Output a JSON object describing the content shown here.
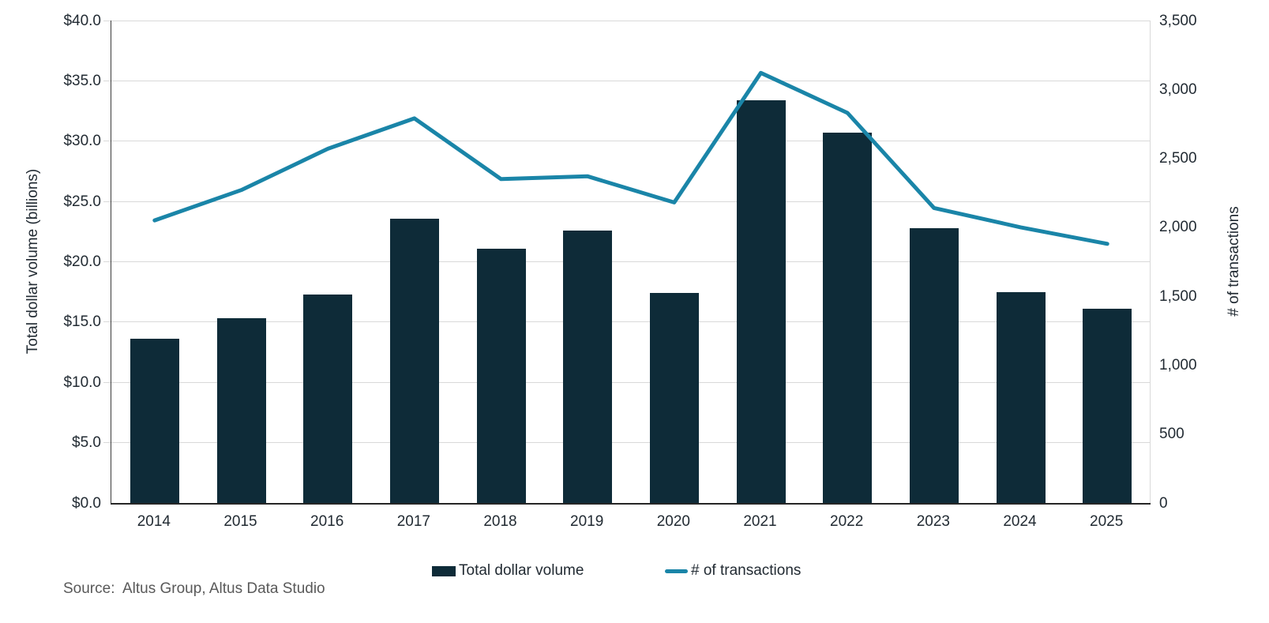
{
  "chart_data": {
    "type": "combo-bar-line",
    "title": "",
    "categories": [
      "2014",
      "2015",
      "2016",
      "2017",
      "2018",
      "2019",
      "2020",
      "2021",
      "2022",
      "2023",
      "2024",
      "2025"
    ],
    "series": [
      {
        "name": "Total dollar volume",
        "type": "bar",
        "yaxis": "left",
        "color": "#0e2b38",
        "values": [
          13.6,
          15.3,
          17.3,
          23.6,
          21.1,
          22.6,
          17.4,
          33.4,
          30.7,
          22.8,
          17.5,
          16.1
        ]
      },
      {
        "name": "# of transactions",
        "type": "line",
        "yaxis": "right",
        "color": "#1a85a8",
        "values": [
          2050,
          2270,
          2570,
          2790,
          2350,
          2370,
          2180,
          3120,
          2830,
          2140,
          2000,
          1880
        ]
      }
    ],
    "left_axis": {
      "label": "Total dollar volume (billions)",
      "min": 0,
      "max": 40,
      "step": 5,
      "tick_labels": [
        "$0.0",
        "$5.0",
        "$10.0",
        "$15.0",
        "$20.0",
        "$25.0",
        "$30.0",
        "$35.0",
        "$40.0"
      ]
    },
    "right_axis": {
      "label": "# of transactions",
      "min": 0,
      "max": 3500,
      "step": 500,
      "tick_labels": [
        "0",
        "500",
        "1,000",
        "1,500",
        "2,000",
        "2,500",
        "3,000",
        "3,500"
      ]
    },
    "grid": true,
    "legend": {
      "position": "bottom",
      "items": [
        {
          "label": "Total dollar volume",
          "swatch": "bar"
        },
        {
          "label": "# of transactions",
          "swatch": "line"
        }
      ]
    },
    "source_note": "Source:  Altus Group, Altus Data Studio",
    "colors": {
      "gridline": "#d9d9d9",
      "axis_line": "#262626",
      "tick_text": "#222b33",
      "source_text": "#595959",
      "background": "#ffffff"
    }
  }
}
